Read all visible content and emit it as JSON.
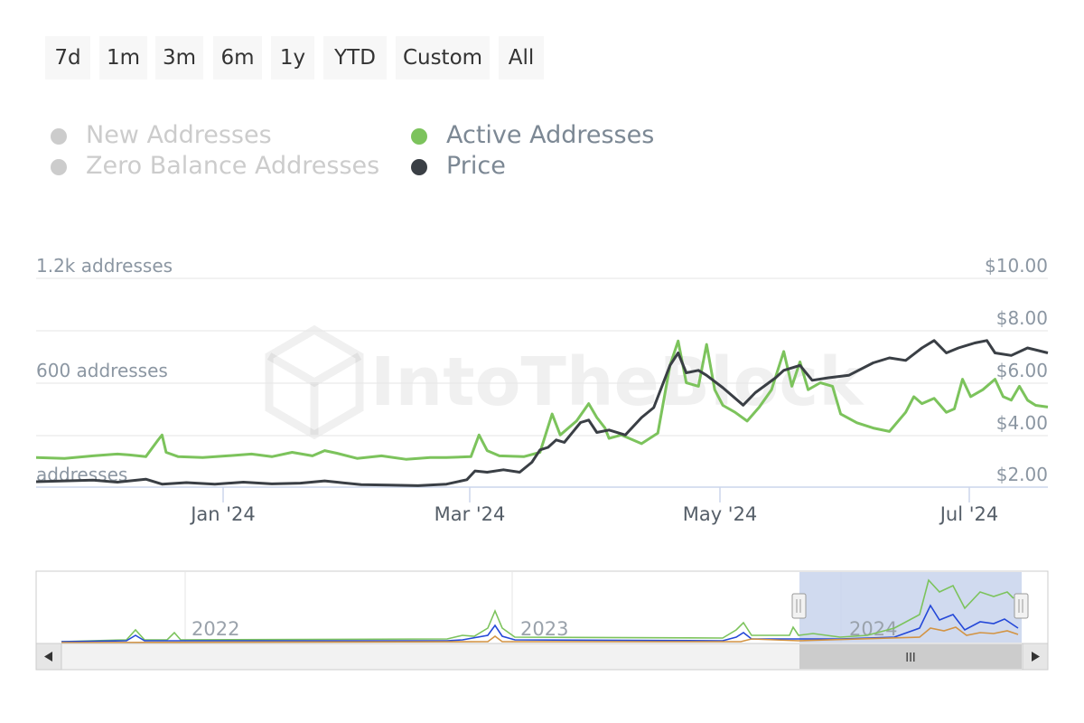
{
  "range_buttons": [
    "7d",
    "1m",
    "3m",
    "6m",
    "1y",
    "YTD",
    "Custom",
    "All"
  ],
  "legend": [
    {
      "label": "New Addresses",
      "state": "hidden",
      "color": "#cccccc"
    },
    {
      "label": "Zero Balance Addresses",
      "state": "hidden",
      "color": "#cccccc"
    },
    {
      "label": "Active Addresses",
      "state": "visible",
      "color": "#7cc35c"
    },
    {
      "label": "Price",
      "state": "visible",
      "color": "#3a3f45"
    }
  ],
  "watermark": "IntoTheBlock",
  "chart_data": {
    "type": "line",
    "left_axis": {
      "ticks": [
        {
          "value": 1200,
          "label": "1.2k addresses"
        },
        {
          "value": 600,
          "label": "600 addresses"
        },
        {
          "value": 0,
          "label": "addresses"
        }
      ],
      "ylim": [
        0,
        1200
      ]
    },
    "right_axis": {
      "ticks": [
        {
          "value": 10,
          "label": "$10.00"
        },
        {
          "value": 8,
          "label": "$8.00"
        },
        {
          "value": 6,
          "label": "$6.00"
        },
        {
          "value": 4,
          "label": "$4.00"
        },
        {
          "value": 2,
          "label": "$2.00"
        }
      ],
      "ylim": [
        1.6,
        10
      ]
    },
    "x_ticks": [
      {
        "date": "2024-01-01",
        "label": "Jan '24"
      },
      {
        "date": "2024-03-01",
        "label": "Mar '24"
      },
      {
        "date": "2024-05-01",
        "label": "May '24"
      },
      {
        "date": "2024-07-01",
        "label": "Jul '24"
      }
    ],
    "xlim": [
      "2023-11-13",
      "2024-07-19"
    ],
    "series": [
      {
        "name": "Active Addresses",
        "color": "#7cc35c",
        "axis": "left",
        "points": [
          [
            "2023-11-13",
            170
          ],
          [
            "2023-11-20",
            165
          ],
          [
            "2023-11-27",
            180
          ],
          [
            "2023-12-03",
            190
          ],
          [
            "2023-12-06",
            185
          ],
          [
            "2023-12-10",
            175
          ],
          [
            "2023-12-13",
            270
          ],
          [
            "2023-12-14",
            300
          ],
          [
            "2023-12-15",
            200
          ],
          [
            "2023-12-18",
            175
          ],
          [
            "2023-12-24",
            170
          ],
          [
            "2023-12-30",
            180
          ],
          [
            "2024-01-05",
            190
          ],
          [
            "2024-01-10",
            175
          ],
          [
            "2024-01-15",
            200
          ],
          [
            "2024-01-20",
            180
          ],
          [
            "2024-01-23",
            210
          ],
          [
            "2024-01-26",
            195
          ],
          [
            "2024-01-31",
            165
          ],
          [
            "2024-02-06",
            180
          ],
          [
            "2024-02-12",
            160
          ],
          [
            "2024-02-18",
            170
          ],
          [
            "2024-02-22",
            170
          ],
          [
            "2024-02-28",
            175
          ],
          [
            "2024-03-01",
            300
          ],
          [
            "2024-03-03",
            210
          ],
          [
            "2024-03-06",
            180
          ],
          [
            "2024-03-12",
            175
          ],
          [
            "2024-03-16",
            200
          ],
          [
            "2024-03-19",
            420
          ],
          [
            "2024-03-21",
            300
          ],
          [
            "2024-03-25",
            380
          ],
          [
            "2024-03-28",
            480
          ],
          [
            "2024-03-30",
            400
          ],
          [
            "2024-04-01",
            340
          ],
          [
            "2024-04-02",
            280
          ],
          [
            "2024-04-05",
            300
          ],
          [
            "2024-04-10",
            250
          ],
          [
            "2024-04-14",
            310
          ],
          [
            "2024-04-17",
            700
          ],
          [
            "2024-04-19",
            840
          ],
          [
            "2024-04-21",
            600
          ],
          [
            "2024-04-24",
            580
          ],
          [
            "2024-04-26",
            820
          ],
          [
            "2024-04-28",
            560
          ],
          [
            "2024-04-30",
            470
          ],
          [
            "2024-05-03",
            430
          ],
          [
            "2024-05-06",
            380
          ],
          [
            "2024-05-09",
            460
          ],
          [
            "2024-05-12",
            560
          ],
          [
            "2024-05-15",
            780
          ],
          [
            "2024-05-17",
            580
          ],
          [
            "2024-05-19",
            720
          ],
          [
            "2024-05-21",
            560
          ],
          [
            "2024-05-24",
            600
          ],
          [
            "2024-05-27",
            580
          ],
          [
            "2024-05-29",
            420
          ],
          [
            "2024-06-02",
            370
          ],
          [
            "2024-06-06",
            340
          ],
          [
            "2024-06-10",
            320
          ],
          [
            "2024-06-14",
            430
          ],
          [
            "2024-06-16",
            520
          ],
          [
            "2024-06-18",
            480
          ],
          [
            "2024-06-21",
            510
          ],
          [
            "2024-06-24",
            430
          ],
          [
            "2024-06-26",
            450
          ],
          [
            "2024-06-28",
            620
          ],
          [
            "2024-06-30",
            520
          ],
          [
            "2024-07-03",
            560
          ],
          [
            "2024-07-06",
            620
          ],
          [
            "2024-07-08",
            520
          ],
          [
            "2024-07-10",
            500
          ],
          [
            "2024-07-12",
            580
          ],
          [
            "2024-07-14",
            500
          ],
          [
            "2024-07-16",
            470
          ],
          [
            "2024-07-19",
            460
          ]
        ]
      },
      {
        "name": "Price",
        "color": "#3a3f45",
        "axis": "right",
        "points": [
          [
            "2023-11-13",
            1.82
          ],
          [
            "2023-11-20",
            1.85
          ],
          [
            "2023-11-27",
            1.88
          ],
          [
            "2023-12-03",
            1.8
          ],
          [
            "2023-12-10",
            1.92
          ],
          [
            "2023-12-14",
            1.72
          ],
          [
            "2023-12-20",
            1.78
          ],
          [
            "2023-12-27",
            1.72
          ],
          [
            "2024-01-03",
            1.8
          ],
          [
            "2024-01-10",
            1.73
          ],
          [
            "2024-01-17",
            1.76
          ],
          [
            "2024-01-23",
            1.85
          ],
          [
            "2024-01-26",
            1.8
          ],
          [
            "2024-02-01",
            1.7
          ],
          [
            "2024-02-08",
            1.68
          ],
          [
            "2024-02-15",
            1.66
          ],
          [
            "2024-02-22",
            1.72
          ],
          [
            "2024-02-27",
            1.9
          ],
          [
            "2024-02-29",
            2.25
          ],
          [
            "2024-03-03",
            2.2
          ],
          [
            "2024-03-07",
            2.3
          ],
          [
            "2024-03-11",
            2.2
          ],
          [
            "2024-03-14",
            2.6
          ],
          [
            "2024-03-16",
            3.1
          ],
          [
            "2024-03-18",
            3.2
          ],
          [
            "2024-03-20",
            3.5
          ],
          [
            "2024-03-22",
            3.4
          ],
          [
            "2024-03-26",
            4.2
          ],
          [
            "2024-03-28",
            4.3
          ],
          [
            "2024-03-30",
            3.8
          ],
          [
            "2024-04-02",
            3.9
          ],
          [
            "2024-04-06",
            3.7
          ],
          [
            "2024-04-10",
            4.4
          ],
          [
            "2024-04-13",
            4.8
          ],
          [
            "2024-04-17",
            6.5
          ],
          [
            "2024-04-19",
            7.0
          ],
          [
            "2024-04-21",
            6.2
          ],
          [
            "2024-04-24",
            6.3
          ],
          [
            "2024-04-26",
            6.1
          ],
          [
            "2024-04-30",
            5.6
          ],
          [
            "2024-05-05",
            4.9
          ],
          [
            "2024-05-08",
            5.4
          ],
          [
            "2024-05-13",
            6.0
          ],
          [
            "2024-05-15",
            6.3
          ],
          [
            "2024-05-19",
            6.5
          ],
          [
            "2024-05-22",
            5.9
          ],
          [
            "2024-05-26",
            6.0
          ],
          [
            "2024-05-31",
            6.1
          ],
          [
            "2024-06-06",
            6.6
          ],
          [
            "2024-06-10",
            6.8
          ],
          [
            "2024-06-14",
            6.7
          ],
          [
            "2024-06-18",
            7.2
          ],
          [
            "2024-06-21",
            7.5
          ],
          [
            "2024-06-24",
            7.0
          ],
          [
            "2024-06-27",
            7.2
          ],
          [
            "2024-07-01",
            7.4
          ],
          [
            "2024-07-04",
            7.5
          ],
          [
            "2024-07-06",
            7.0
          ],
          [
            "2024-07-10",
            6.9
          ],
          [
            "2024-07-14",
            7.2
          ],
          [
            "2024-07-19",
            7.0
          ]
        ]
      }
    ]
  },
  "navigator": {
    "labels": [
      "2022",
      "2023",
      "2024"
    ],
    "series": [
      {
        "name": "Active Addresses",
        "color": "#7cc35c"
      },
      {
        "name": "New Addresses",
        "color": "#2448d8"
      },
      {
        "name": "Zero Balance Addresses",
        "color": "#d39443"
      }
    ],
    "scrollbar_grip": "III"
  }
}
